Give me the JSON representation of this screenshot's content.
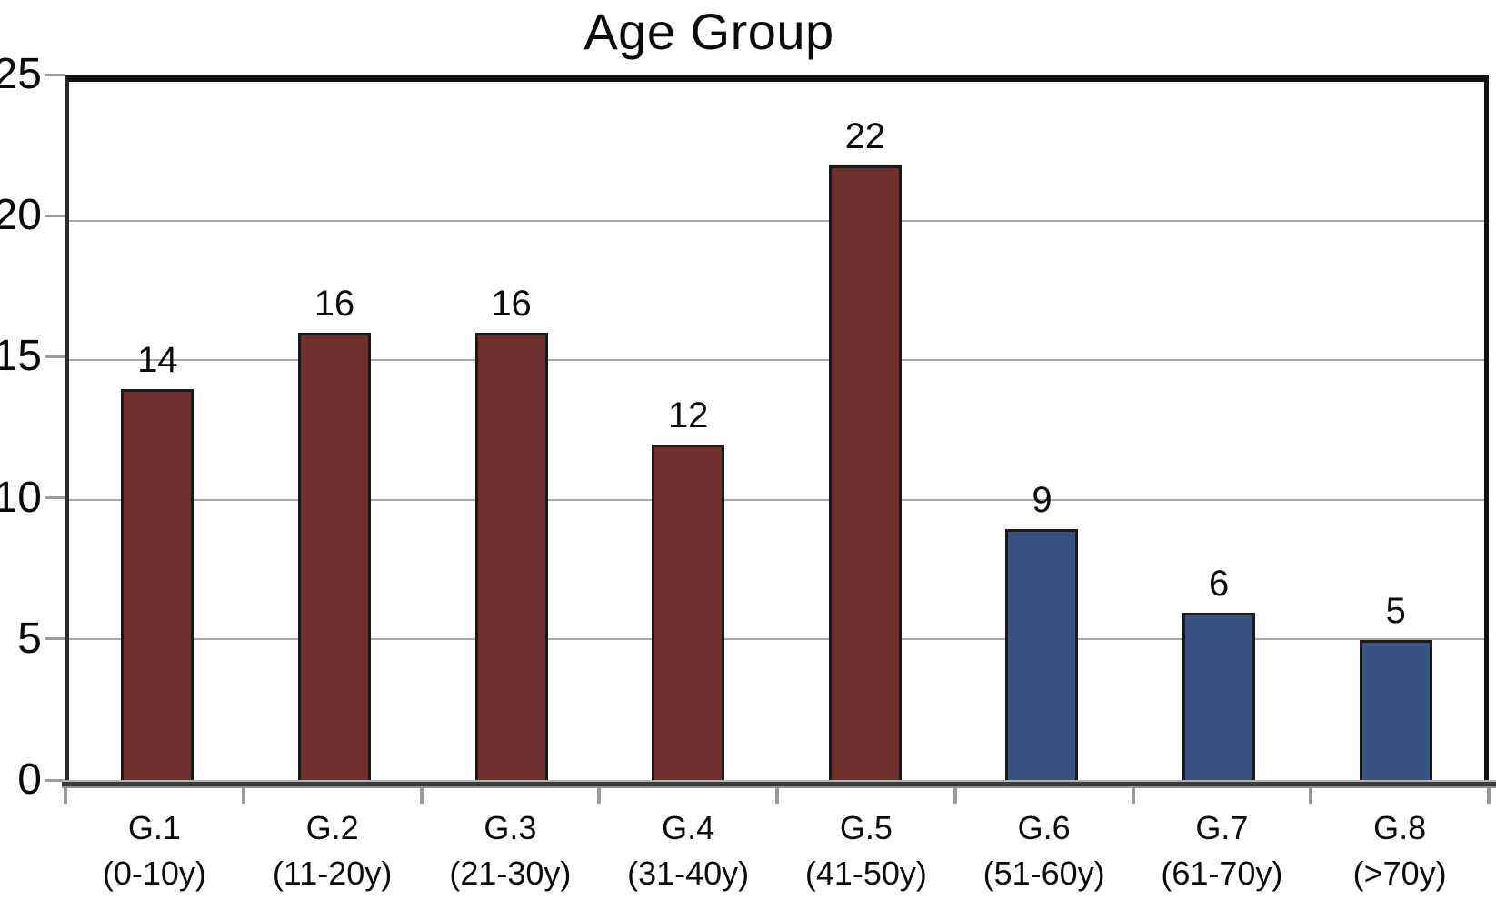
{
  "title": "Age Group",
  "chart_data": {
    "type": "bar",
    "title": "Age Group",
    "categories": [
      {
        "group": "G.1",
        "range": "(0-10y)"
      },
      {
        "group": "G.2",
        "range": "(11-20y)"
      },
      {
        "group": "G.3",
        "range": "(21-30y)"
      },
      {
        "group": "G.4",
        "range": "(31-40y)"
      },
      {
        "group": "G.5",
        "range": "(41-50y)"
      },
      {
        "group": "G.6",
        "range": "(51-60y)"
      },
      {
        "group": "G.7",
        "range": "(61-70y)"
      },
      {
        "group": "G.8",
        "range": "(>70y)"
      }
    ],
    "values": [
      14,
      16,
      16,
      12,
      22,
      9,
      6,
      5
    ],
    "bar_colors": [
      "#6E2F2D",
      "#6E2F2D",
      "#6E2F2D",
      "#6E2F2D",
      "#6E2F2D",
      "#3A5183",
      "#3A5183",
      "#3A5183"
    ],
    "yticks": [
      0,
      5,
      10,
      15,
      20,
      25
    ],
    "ylim": [
      0,
      25
    ],
    "grid": true,
    "legend_position": "none",
    "colors": {
      "maroon": "#6E2F2D",
      "navy": "#3A5183",
      "gridline": "#a8a8a8",
      "bar_border": "#1a1a1a"
    }
  }
}
